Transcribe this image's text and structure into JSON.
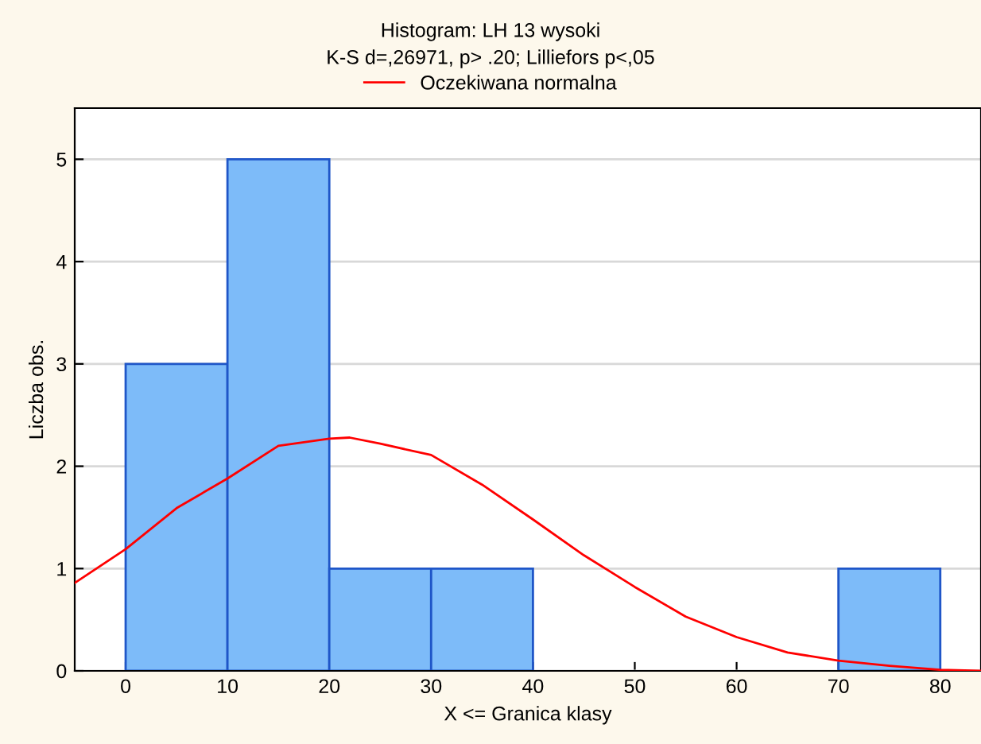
{
  "chart_data": {
    "type": "histogram",
    "title": "Histogram: LH 13 wysoki",
    "subtitle": "K-S d=,26971, p> .20; Lilliefors p<,05",
    "xlabel": "X <= Granica klasy",
    "ylabel": "Liczba obs.",
    "bins": [
      0,
      10,
      20,
      30,
      40,
      50,
      60,
      70,
      80
    ],
    "values": [
      3,
      5,
      1,
      1,
      0,
      0,
      0,
      1
    ],
    "color": "#7dbbf9",
    "series": [
      {
        "type": "line",
        "name": "Oczekiwana normalna",
        "color": "#ff0000",
        "x": [
          -5,
          0,
          5,
          10,
          15,
          20,
          22,
          25,
          30,
          35,
          40,
          45,
          50,
          55,
          60,
          65,
          70,
          75,
          80,
          84
        ],
        "values": [
          0.86,
          1.19,
          1.59,
          1.88,
          2.2,
          2.27,
          2.28,
          2.22,
          2.11,
          1.82,
          1.48,
          1.13,
          0.82,
          0.53,
          0.33,
          0.18,
          0.1,
          0.05,
          0.01,
          0
        ]
      }
    ],
    "xlim": [
      -5,
      84
    ],
    "ylim": [
      0,
      5.5
    ],
    "xticks": [
      0,
      10,
      20,
      30,
      40,
      50,
      60,
      70,
      80
    ],
    "yticks": [
      0,
      1,
      2,
      3,
      4,
      5
    ],
    "grid": "y",
    "legend": "top"
  }
}
